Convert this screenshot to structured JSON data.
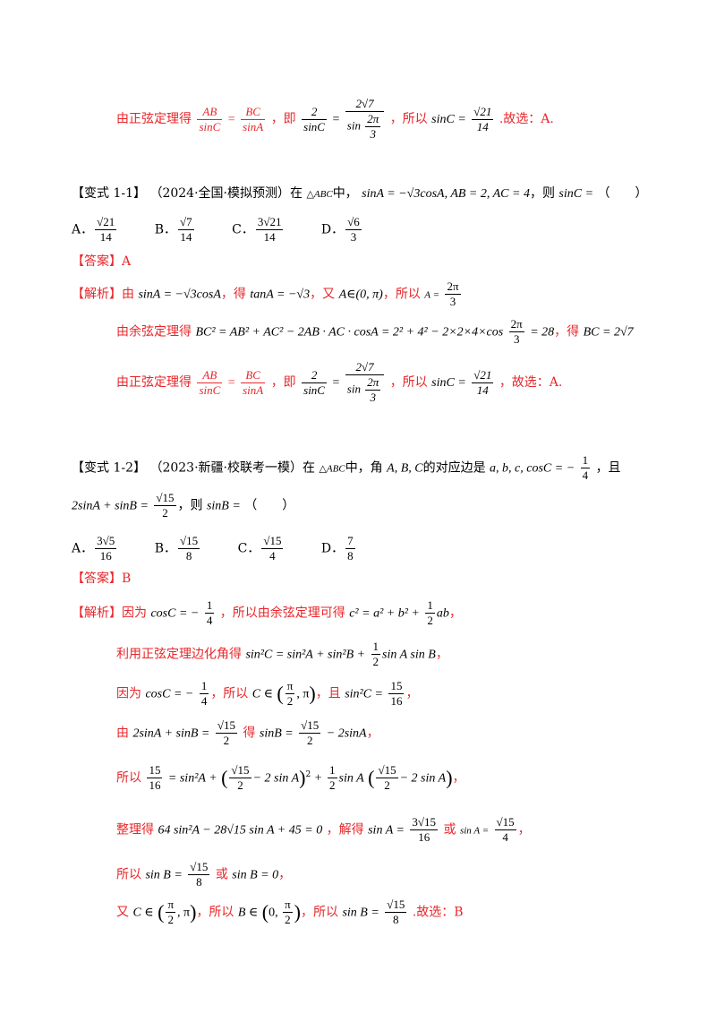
{
  "top": {
    "l1_a": "由正弦定理得",
    "l1_b": "，即",
    "l1_c": "，所以",
    "l1_d": ".故选：A."
  },
  "q1": {
    "tag": "【变式 1-1】",
    "source": "（2024·全国·模拟预测）在",
    "tri": "△ABC",
    "in": "中，",
    "cond": "sinA = −√3cosA, AB = 2, AC = 4",
    "then": "，则",
    "ask": "sinC =",
    "paren": "（　　）",
    "options": [
      {
        "label": "A．",
        "num": "√21",
        "den": "14"
      },
      {
        "label": "B．",
        "num": "√7",
        "den": "14"
      },
      {
        "label": "C．",
        "num": "3√21",
        "den": "14"
      },
      {
        "label": "D．",
        "num": "√6",
        "den": "3"
      }
    ],
    "answer_tag": "【答案】A",
    "sol_tag": "【解析】",
    "s1a": "由",
    "s1b": "sinA = −√3cosA",
    "s1c": "，得",
    "s1d": "tanA = −√3",
    "s1e": "，又",
    "s1f": "A∈(0, π)",
    "s1g": "，所以",
    "s1h": "A =",
    "s2a": "由余弦定理得",
    "s2b": "BC² = AB² + AC² − 2AB · AC · cosA = 2² + 4² − 2×2×4×cos",
    "s2c": "= 28",
    "s2d": "，得",
    "s2e": "BC = 2√7",
    "s3a": "由正弦定理得",
    "s3b": "，即",
    "s3c": "，所以",
    "s3d": "，故选：A."
  },
  "q2": {
    "tag": "【变式 1-2】",
    "source": "（2023·新疆·校联考一模）在",
    "tri": "△ABC",
    "mid": "中，角",
    "angles": "A, B, C",
    "opp": "的对应边是",
    "sides": "a, b, c, cosC = −",
    "and": "，且",
    "l2a": "2sinA + sinB =",
    "l2b": "，则",
    "l2c": "sinB =",
    "paren": "（　　）",
    "options": [
      {
        "label": "A．",
        "num": "3√5",
        "den": "16"
      },
      {
        "label": "B．",
        "num": "√15",
        "den": "8"
      },
      {
        "label": "C．",
        "num": "√15",
        "den": "4"
      },
      {
        "label": "D．",
        "num": "7",
        "den": "8"
      }
    ],
    "answer_tag": "【答案】B",
    "sol_tag": "【解析】",
    "p1a": "因为",
    "p1b": "cosC = −",
    "p1c": "，所以由余弦定理可得",
    "p1d": "c² = a² + b² +",
    "p1e": "ab",
    "p2a": "利用正弦定理边化角得",
    "p2b": "sin²C = sin²A + sin²B +",
    "p2c": "sin A sin B",
    "p3a": "因为",
    "p3b": "cosC = −",
    "p3c": "，所以",
    "p3d": "C ∈",
    "p3e": "，且",
    "p3f": "sin²C =",
    "p4a": "由",
    "p4b": "2sinA + sinB =",
    "p4c": "得",
    "p4d": "sinB =",
    "p4e": "− 2sinA",
    "p5a": "所以",
    "p5b": "= sin²A +",
    "p5c": "− 2 sin A",
    "p5d": "sin A",
    "p6a": "整理得",
    "p6b": "64 sin²A − 28√15 sin A + 45 = 0",
    "p6c": "，解得",
    "p6d": "sin A =",
    "p6e": "或",
    "p6f": "sin A =",
    "p7a": "所以",
    "p7b": "sin B =",
    "p7c": "或",
    "p7d": "sin B = 0",
    "p8a": "又",
    "p8b": "C ∈",
    "p8c": "，所以",
    "p8d": "B ∈",
    "p8e": "，所以",
    "p8f": "sin B =",
    "p8g": ".故选：B"
  },
  "fr": {
    "AB": "AB",
    "sinC": "sinC",
    "BC": "BC",
    "sinA": "sinA",
    "two": "2",
    "twor7": "2√7",
    "sin2pi3": "sin",
    "twopi": "2π",
    "three": "3",
    "r21": "√21",
    "fourteen": "14",
    "one": "1",
    "four": "4",
    "r15": "√15",
    "sixteen": "16",
    "fifteen": "15",
    "pi": "π",
    "eight": "8",
    "tr15": "3√15",
    "pi2": "(π/2, π)",
    "zpi2": "(0, π/2)"
  }
}
